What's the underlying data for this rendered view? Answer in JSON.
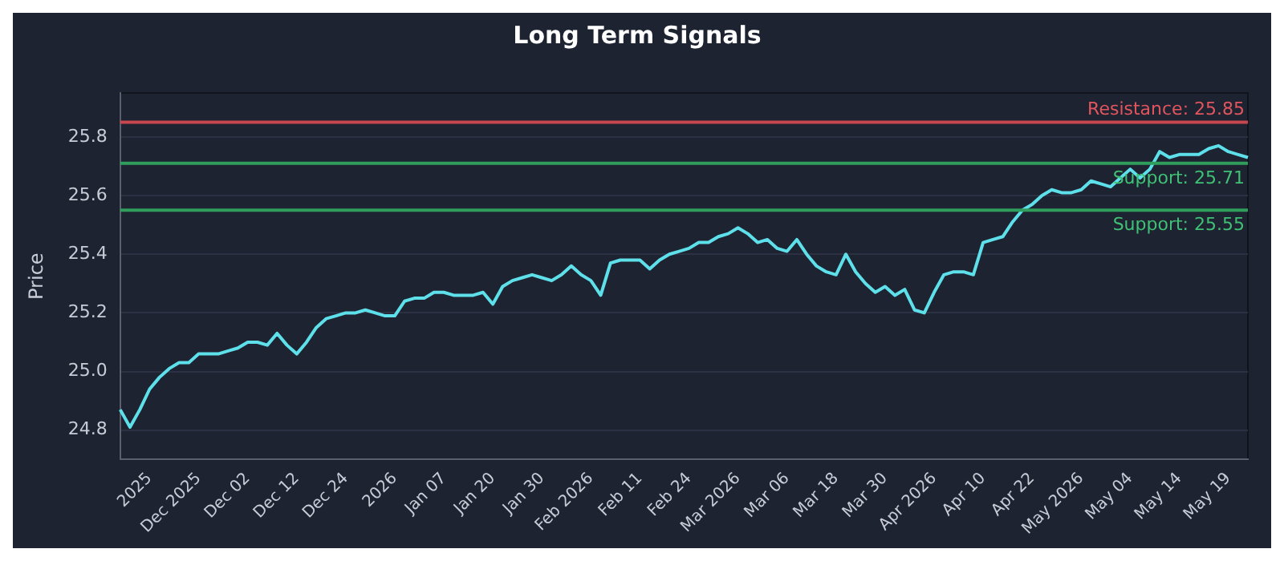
{
  "chart_data": {
    "type": "line",
    "title": "Long Term Signals",
    "ylabel": "Price",
    "categories": [
      null,
      null,
      null,
      "2025",
      null,
      null,
      null,
      null,
      "Dec 2025",
      null,
      null,
      null,
      null,
      "Dec 02",
      null,
      null,
      null,
      null,
      "Dec 12",
      null,
      null,
      null,
      null,
      "Dec 24",
      null,
      null,
      null,
      null,
      "2026",
      null,
      null,
      null,
      null,
      "Jan 07",
      null,
      null,
      null,
      null,
      "Jan 20",
      null,
      null,
      null,
      null,
      "Jan 30",
      null,
      null,
      null,
      null,
      "Feb 2026",
      null,
      null,
      null,
      null,
      "Feb 11",
      null,
      null,
      null,
      null,
      "Feb 24",
      null,
      null,
      null,
      null,
      "Mar 2026",
      null,
      null,
      null,
      null,
      "Mar 06",
      null,
      null,
      null,
      null,
      "Mar 18",
      null,
      null,
      null,
      null,
      "Mar 30",
      null,
      null,
      null,
      null,
      "Apr 2026",
      null,
      null,
      null,
      null,
      "Apr 10",
      null,
      null,
      null,
      null,
      "Apr 22",
      null,
      null,
      null,
      null,
      "May 2026",
      null,
      null,
      null,
      null,
      "May 04",
      null,
      null,
      null,
      null,
      "May 14",
      null,
      null,
      null,
      null,
      "May 19",
      null,
      null
    ],
    "series": [
      {
        "color": "#5ee0ea",
        "values": [
          24.87,
          24.81,
          24.87,
          24.94,
          24.98,
          25.01,
          25.03,
          25.03,
          25.06,
          25.06,
          25.06,
          25.07,
          25.08,
          25.1,
          25.1,
          25.09,
          25.13,
          25.09,
          25.06,
          25.1,
          25.15,
          25.18,
          25.19,
          25.2,
          25.2,
          25.21,
          25.2,
          25.19,
          25.19,
          25.24,
          25.25,
          25.25,
          25.27,
          25.27,
          25.26,
          25.26,
          25.26,
          25.27,
          25.23,
          25.29,
          25.31,
          25.32,
          25.33,
          25.32,
          25.31,
          25.33,
          25.36,
          25.33,
          25.31,
          25.26,
          25.37,
          25.38,
          25.38,
          25.38,
          25.35,
          25.38,
          25.4,
          25.41,
          25.42,
          25.44,
          25.44,
          25.46,
          25.47,
          25.49,
          25.47,
          25.44,
          25.45,
          25.42,
          25.41,
          25.45,
          25.4,
          25.36,
          25.34,
          25.33,
          25.4,
          25.34,
          25.3,
          25.27,
          25.29,
          25.26,
          25.28,
          25.21,
          25.2,
          25.27,
          25.33,
          25.34,
          25.34,
          25.33,
          25.44,
          25.45,
          25.46,
          25.51,
          25.55,
          25.57,
          25.6,
          25.62,
          25.61,
          25.61,
          25.62,
          25.65,
          25.64,
          25.63,
          25.66,
          25.69,
          25.66,
          25.69,
          25.75,
          25.73,
          25.74,
          25.74,
          25.74,
          25.76,
          25.77,
          25.75,
          25.74,
          25.73
        ]
      }
    ],
    "ylim": [
      24.7,
      25.95
    ],
    "yticks": [
      {
        "value": 24.8,
        "label": "24.8"
      },
      {
        "value": 25.0,
        "label": "25.0"
      },
      {
        "value": 25.2,
        "label": "25.2"
      },
      {
        "value": 25.4,
        "label": "25.4"
      },
      {
        "value": 25.6,
        "label": "25.6"
      },
      {
        "value": 25.8,
        "label": "25.8"
      }
    ],
    "grid": "y",
    "ref_lines": [
      {
        "axis": "y",
        "value": 25.85,
        "label": "Resistance: 25.85",
        "color": "#c8474f"
      },
      {
        "axis": "y",
        "value": 25.71,
        "label": "Support: 25.71",
        "color": "#2f9e5c"
      },
      {
        "axis": "y",
        "value": 25.55,
        "label": "Support: 25.55",
        "color": "#2f9e5c"
      }
    ]
  }
}
